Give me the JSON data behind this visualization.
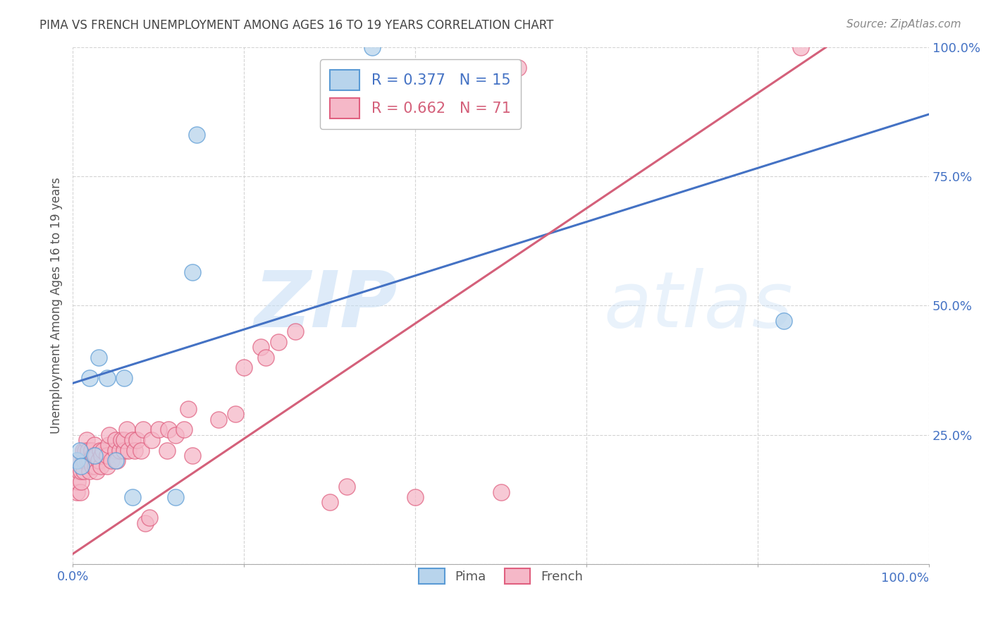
{
  "title": "PIMA VS FRENCH UNEMPLOYMENT AMONG AGES 16 TO 19 YEARS CORRELATION CHART",
  "source": "Source: ZipAtlas.com",
  "ylabel": "Unemployment Among Ages 16 to 19 years",
  "xlim": [
    0,
    1
  ],
  "ylim": [
    0,
    1
  ],
  "xticks": [
    0.0,
    0.2,
    0.4,
    0.6,
    0.8,
    1.0
  ],
  "yticks": [
    0.0,
    0.25,
    0.5,
    0.75,
    1.0
  ],
  "xticklabels_left": [
    "0.0%",
    "",
    "",
    "",
    "",
    ""
  ],
  "xticklabels_right": [
    "",
    "",
    "",
    "",
    "",
    "100.0%"
  ],
  "yticklabels_right": [
    "",
    "25.0%",
    "50.0%",
    "75.0%",
    "100.0%"
  ],
  "pima_color": "#b8d4ec",
  "french_color": "#f5b8c8",
  "pima_edge_color": "#5b9bd5",
  "french_edge_color": "#e06080",
  "pima_line_color": "#4472c4",
  "french_line_color": "#d4607a",
  "legend_pima_label": "R = 0.377   N = 15",
  "legend_french_label": "R = 0.662   N = 71",
  "bottom_legend_pima": "Pima",
  "bottom_legend_french": "French",
  "watermark_zip": "ZIP",
  "watermark_atlas": "atlas",
  "background_color": "#ffffff",
  "grid_color": "#d0d0d0",
  "tick_label_color": "#4472c4",
  "title_color": "#444444",
  "source_color": "#888888",
  "pima_scatter": [
    [
      0.005,
      0.2
    ],
    [
      0.008,
      0.22
    ],
    [
      0.01,
      0.19
    ],
    [
      0.02,
      0.36
    ],
    [
      0.025,
      0.21
    ],
    [
      0.03,
      0.4
    ],
    [
      0.04,
      0.36
    ],
    [
      0.05,
      0.2
    ],
    [
      0.06,
      0.36
    ],
    [
      0.07,
      0.13
    ],
    [
      0.12,
      0.13
    ],
    [
      0.14,
      0.565
    ],
    [
      0.145,
      0.83
    ],
    [
      0.35,
      1.0
    ],
    [
      0.83,
      0.47
    ]
  ],
  "french_scatter": [
    [
      0.005,
      0.14
    ],
    [
      0.006,
      0.16
    ],
    [
      0.007,
      0.18
    ],
    [
      0.008,
      0.2
    ],
    [
      0.009,
      0.14
    ],
    [
      0.01,
      0.16
    ],
    [
      0.01,
      0.18
    ],
    [
      0.012,
      0.2
    ],
    [
      0.012,
      0.22
    ],
    [
      0.013,
      0.18
    ],
    [
      0.014,
      0.2
    ],
    [
      0.015,
      0.22
    ],
    [
      0.016,
      0.24
    ],
    [
      0.017,
      0.2
    ],
    [
      0.018,
      0.22
    ],
    [
      0.02,
      0.18
    ],
    [
      0.02,
      0.2
    ],
    [
      0.022,
      0.22
    ],
    [
      0.023,
      0.19
    ],
    [
      0.024,
      0.21
    ],
    [
      0.025,
      0.23
    ],
    [
      0.026,
      0.19
    ],
    [
      0.027,
      0.21
    ],
    [
      0.028,
      0.18
    ],
    [
      0.03,
      0.2
    ],
    [
      0.032,
      0.22
    ],
    [
      0.033,
      0.19
    ],
    [
      0.034,
      0.21
    ],
    [
      0.035,
      0.22
    ],
    [
      0.04,
      0.19
    ],
    [
      0.04,
      0.21
    ],
    [
      0.042,
      0.23
    ],
    [
      0.043,
      0.25
    ],
    [
      0.045,
      0.2
    ],
    [
      0.05,
      0.22
    ],
    [
      0.05,
      0.24
    ],
    [
      0.052,
      0.2
    ],
    [
      0.055,
      0.22
    ],
    [
      0.057,
      0.24
    ],
    [
      0.06,
      0.22
    ],
    [
      0.06,
      0.24
    ],
    [
      0.063,
      0.26
    ],
    [
      0.065,
      0.22
    ],
    [
      0.07,
      0.24
    ],
    [
      0.072,
      0.22
    ],
    [
      0.075,
      0.24
    ],
    [
      0.08,
      0.22
    ],
    [
      0.082,
      0.26
    ],
    [
      0.085,
      0.08
    ],
    [
      0.09,
      0.09
    ],
    [
      0.092,
      0.24
    ],
    [
      0.1,
      0.26
    ],
    [
      0.11,
      0.22
    ],
    [
      0.112,
      0.26
    ],
    [
      0.12,
      0.25
    ],
    [
      0.13,
      0.26
    ],
    [
      0.135,
      0.3
    ],
    [
      0.14,
      0.21
    ],
    [
      0.17,
      0.28
    ],
    [
      0.19,
      0.29
    ],
    [
      0.2,
      0.38
    ],
    [
      0.22,
      0.42
    ],
    [
      0.225,
      0.4
    ],
    [
      0.24,
      0.43
    ],
    [
      0.26,
      0.45
    ],
    [
      0.3,
      0.12
    ],
    [
      0.32,
      0.15
    ],
    [
      0.4,
      0.13
    ],
    [
      0.5,
      0.14
    ],
    [
      0.52,
      0.96
    ],
    [
      0.85,
      1.0
    ]
  ],
  "pima_line_x": [
    0.0,
    1.0
  ],
  "pima_line_y": [
    0.35,
    0.87
  ],
  "french_line_x": [
    0.0,
    0.88
  ],
  "french_line_y": [
    0.02,
    1.0
  ]
}
